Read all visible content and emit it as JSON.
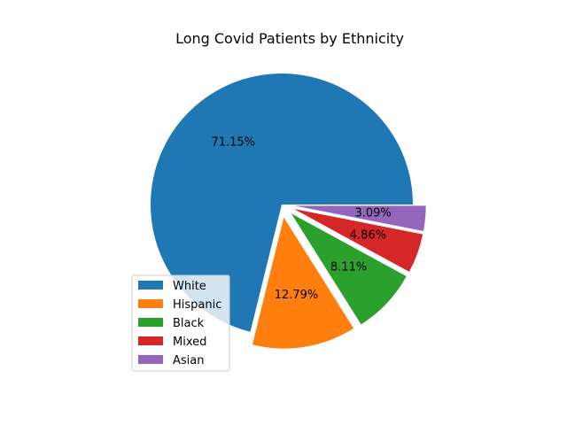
{
  "chart_data": {
    "type": "pie",
    "title": "Long Covid Patients by Ethnicity",
    "categories": [
      "White",
      "Hispanic",
      "Black",
      "Mixed",
      "Asian"
    ],
    "values": [
      71.15,
      12.79,
      8.11,
      4.86,
      3.09
    ],
    "labels": [
      "71.15%",
      "12.79%",
      "8.11%",
      "4.86%",
      "3.09%"
    ],
    "colors": [
      "#1f77b4",
      "#ff7f0e",
      "#2ca02c",
      "#d62728",
      "#9467bd"
    ],
    "exploded": [
      false,
      true,
      true,
      true,
      true
    ],
    "legend": {
      "placement": "lower-left",
      "entries": [
        "White",
        "Hispanic",
        "Black",
        "Mixed",
        "Asian"
      ]
    }
  }
}
